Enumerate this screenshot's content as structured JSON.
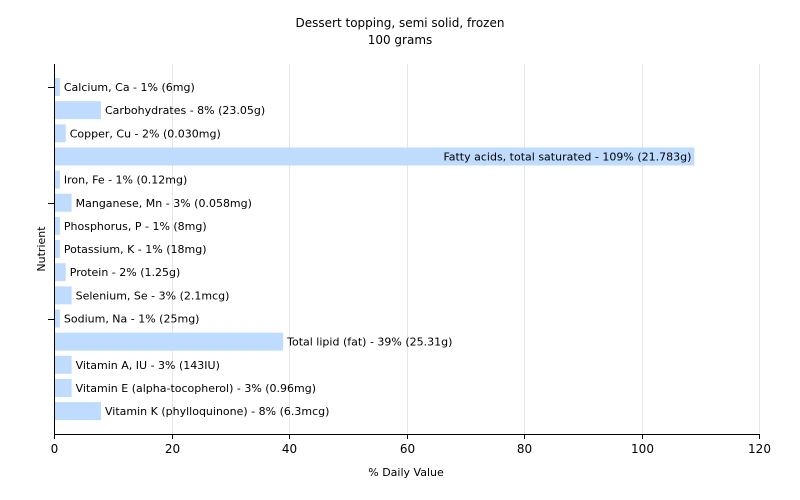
{
  "chart_data": {
    "type": "bar",
    "orientation": "horizontal",
    "title": "Dessert topping, semi solid, frozen",
    "subtitle": "100 grams",
    "xlabel": "% Daily Value",
    "ylabel": "Nutrient",
    "xlim": [
      0,
      120
    ],
    "xticks": [
      "0",
      "20",
      "40",
      "60",
      "80",
      "100",
      "120"
    ],
    "grid": true,
    "bar_color": "#bfdcff",
    "categories": [
      "Calcium, Ca",
      "Carbohydrates",
      "Copper, Cu",
      "Fatty acids, total saturated",
      "Iron, Fe",
      "Manganese, Mn",
      "Phosphorus, P",
      "Potassium, K",
      "Protein",
      "Selenium, Se",
      "Sodium, Na",
      "Total lipid (fat)",
      "Vitamin A, IU",
      "Vitamin E (alpha-tocopherol)",
      "Vitamin K (phylloquinone)"
    ],
    "values": [
      1,
      8,
      2,
      109,
      1,
      3,
      1,
      1,
      2,
      3,
      1,
      39,
      3,
      3,
      8
    ],
    "labels": [
      "Calcium, Ca - 1% (6mg)",
      "Carbohydrates - 8% (23.05g)",
      "Copper, Cu - 2% (0.030mg)",
      "Fatty acids, total saturated - 109% (21.783g)",
      "Iron, Fe - 1% (0.12mg)",
      "Manganese, Mn - 3% (0.058mg)",
      "Phosphorus, P - 1% (8mg)",
      "Potassium, K - 1% (18mg)",
      "Protein - 2% (1.25g)",
      "Selenium, Se - 3% (2.1mcg)",
      "Sodium, Na - 1% (25mg)",
      "Total lipid (fat) - 39% (25.31g)",
      "Vitamin A, IU - 3% (143IU)",
      "Vitamin E (alpha-tocopherol) - 3% (0.96mg)",
      "Vitamin K (phylloquinone) - 8% (6.3mcg)"
    ]
  }
}
